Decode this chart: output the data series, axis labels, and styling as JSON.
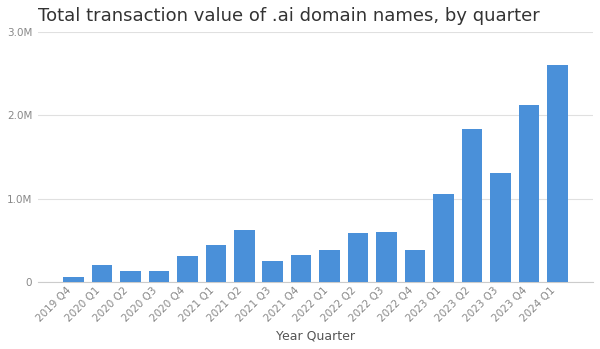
{
  "title": "Total transaction value of .ai domain names, by quarter",
  "xlabel": "Year Quarter",
  "categories": [
    "2019 Q4",
    "2020 Q1",
    "2020 Q2",
    "2020 Q3",
    "2020 Q4",
    "2021 Q1",
    "2021 Q2",
    "2021 Q3",
    "2021 Q4",
    "2022 Q1",
    "2022 Q2",
    "2022 Q3",
    "2022 Q4",
    "2023 Q1",
    "2023 Q2",
    "2023 Q3",
    "2023 Q4",
    "2024 Q1"
  ],
  "values": [
    60000,
    210000,
    130000,
    130000,
    310000,
    450000,
    620000,
    250000,
    330000,
    390000,
    590000,
    600000,
    390000,
    1060000,
    1840000,
    1310000,
    2120000,
    2600000
  ],
  "bar_color": "#4a90d9",
  "ylim": [
    0,
    3000000
  ],
  "yticks": [
    0,
    1000000,
    2000000,
    3000000
  ],
  "ytick_labels": [
    "0",
    "1.0M",
    "2.0M",
    "3.0M"
  ],
  "background_color": "#ffffff",
  "title_fontsize": 13,
  "label_fontsize": 9,
  "tick_fontsize": 7.5,
  "title_color": "#333333",
  "tick_color": "#888888",
  "xlabel_color": "#555555",
  "grid_color": "#e0e0e0",
  "bottom_spine_color": "#cccccc"
}
